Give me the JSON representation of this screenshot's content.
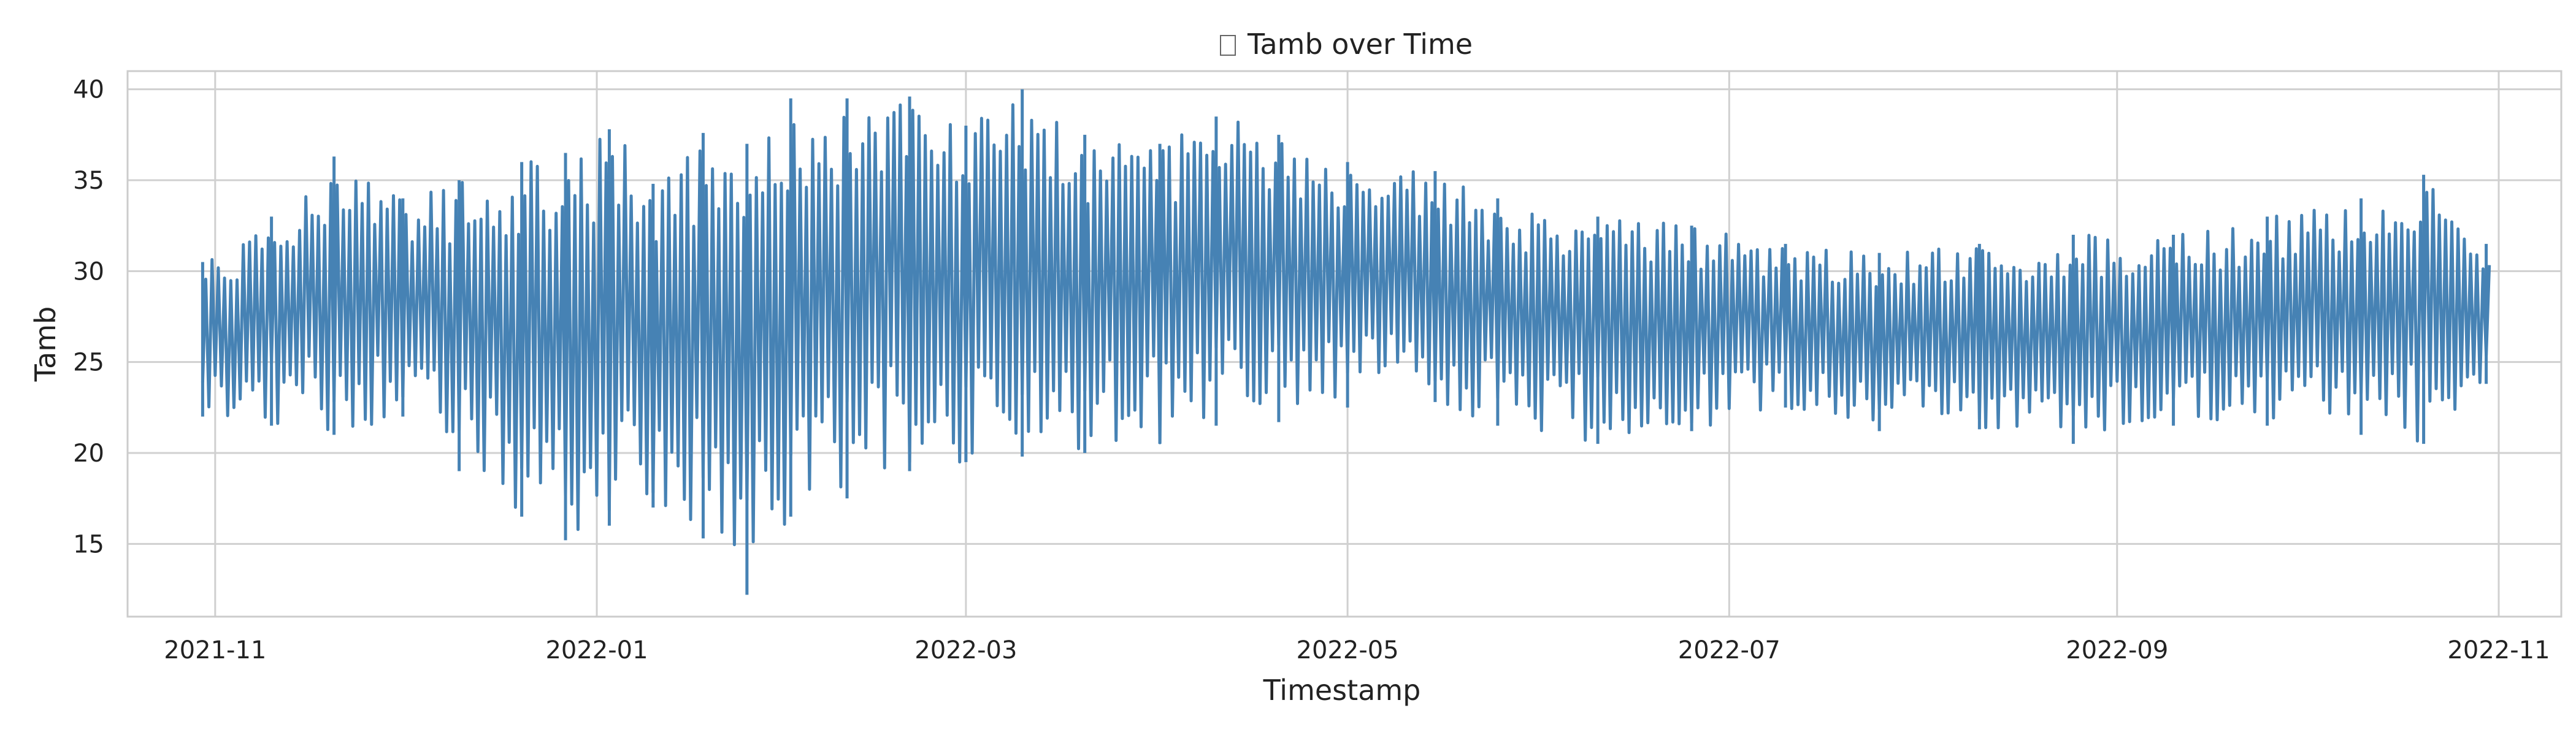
{
  "chart_data": {
    "type": "line",
    "title": "Tamb over Time",
    "title_icon": "missing-glyph-box",
    "xlabel": "Timestamp",
    "ylabel": "Tamb",
    "x_range": [
      "2021-10-18",
      "2022-11-11"
    ],
    "ylim": [
      11,
      41
    ],
    "x_ticks": [
      "2021-11-01",
      "2022-01-01",
      "2022-03-01",
      "2022-05-01",
      "2022-07-01",
      "2022-09-01",
      "2022-11-01"
    ],
    "x_tick_labels": [
      "2021-11",
      "2022-01",
      "2022-03",
      "2022-05",
      "2022-07",
      "2022-09",
      "2022-11"
    ],
    "y_ticks": [
      15,
      20,
      25,
      30,
      35,
      40
    ],
    "y_tick_labels": [
      "15",
      "20",
      "25",
      "30",
      "35",
      "40"
    ],
    "grid": true,
    "legend": "none",
    "series": [
      {
        "color": "#4682b4",
        "sampling": "daily minimum and maximum",
        "points": [
          {
            "date": "2021-10-30",
            "min": 22.0,
            "max": 30.5
          },
          {
            "date": "2021-11-10",
            "min": 21.5,
            "max": 33.0
          },
          {
            "date": "2021-11-20",
            "min": 21.0,
            "max": 36.3
          },
          {
            "date": "2021-12-01",
            "min": 22.0,
            "max": 34.0
          },
          {
            "date": "2021-12-10",
            "min": 19.0,
            "max": 35.0
          },
          {
            "date": "2021-12-20",
            "min": 16.5,
            "max": 36.0
          },
          {
            "date": "2021-12-27",
            "min": 15.2,
            "max": 36.5
          },
          {
            "date": "2022-01-03",
            "min": 16.0,
            "max": 37.8
          },
          {
            "date": "2022-01-10",
            "min": 17.0,
            "max": 34.8
          },
          {
            "date": "2022-01-18",
            "min": 15.3,
            "max": 37.6
          },
          {
            "date": "2022-01-25",
            "min": 12.2,
            "max": 37.0
          },
          {
            "date": "2022-02-01",
            "min": 16.5,
            "max": 39.5
          },
          {
            "date": "2022-02-10",
            "min": 17.5,
            "max": 39.5
          },
          {
            "date": "2022-02-20",
            "min": 19.0,
            "max": 39.6
          },
          {
            "date": "2022-03-01",
            "min": 19.5,
            "max": 38.0
          },
          {
            "date": "2022-03-10",
            "min": 19.8,
            "max": 40.0
          },
          {
            "date": "2022-03-20",
            "min": 20.0,
            "max": 37.5
          },
          {
            "date": "2022-04-01",
            "min": 20.5,
            "max": 37.0
          },
          {
            "date": "2022-04-10",
            "min": 21.5,
            "max": 38.5
          },
          {
            "date": "2022-04-20",
            "min": 21.7,
            "max": 37.5
          },
          {
            "date": "2022-05-01",
            "min": 22.5,
            "max": 36.0
          },
          {
            "date": "2022-05-15",
            "min": 22.8,
            "max": 35.5
          },
          {
            "date": "2022-05-25",
            "min": 21.5,
            "max": 34.0
          },
          {
            "date": "2022-06-10",
            "min": 20.5,
            "max": 33.0
          },
          {
            "date": "2022-06-25",
            "min": 21.2,
            "max": 32.5
          },
          {
            "date": "2022-07-10",
            "min": 22.5,
            "max": 31.5
          },
          {
            "date": "2022-07-25",
            "min": 21.2,
            "max": 31.0
          },
          {
            "date": "2022-08-10",
            "min": 21.3,
            "max": 31.5
          },
          {
            "date": "2022-08-25",
            "min": 20.5,
            "max": 32.0
          },
          {
            "date": "2022-09-10",
            "min": 21.5,
            "max": 32.0
          },
          {
            "date": "2022-09-25",
            "min": 21.5,
            "max": 33.0
          },
          {
            "date": "2022-10-10",
            "min": 21.0,
            "max": 34.0
          },
          {
            "date": "2022-10-20",
            "min": 20.5,
            "max": 35.3
          },
          {
            "date": "2022-10-30",
            "min": 23.8,
            "max": 31.5
          }
        ]
      }
    ]
  }
}
